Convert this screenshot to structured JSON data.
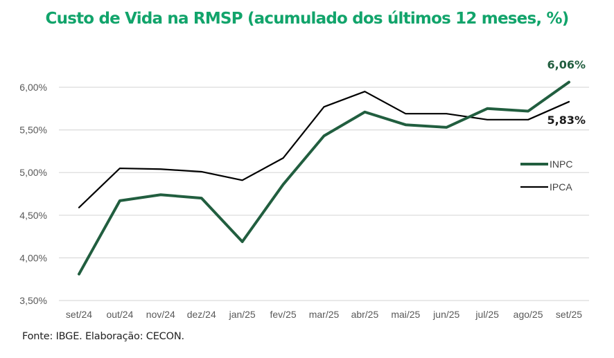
{
  "chart_data": {
    "type": "line",
    "title": "Custo de Vida na RMSP (acumulado dos últimos 12 meses, %)",
    "source_note": "Fonte: IBGE. Elaboração: CECON.",
    "xlabel": "",
    "ylabel": "",
    "categories": [
      "set/24",
      "out/24",
      "nov/24",
      "dez/24",
      "jan/25",
      "fev/25",
      "mar/25",
      "abr/25",
      "mai/25",
      "jun/25",
      "jul/25",
      "ago/25",
      "set/25"
    ],
    "ylim": [
      3.5,
      6.0
    ],
    "yticks": [
      {
        "value": 6.0,
        "label": "6,00%"
      },
      {
        "value": 5.5,
        "label": "5,50%"
      },
      {
        "value": 5.0,
        "label": "5,00%"
      },
      {
        "value": 4.5,
        "label": "4,50%"
      },
      {
        "value": 4.0,
        "label": "4,00%"
      },
      {
        "value": 3.5,
        "label": "3,50%"
      }
    ],
    "grid": true,
    "legend_position": "right",
    "series": [
      {
        "name": "INPC",
        "color": "#215e3f",
        "values": [
          3.81,
          4.67,
          4.74,
          4.7,
          4.19,
          4.86,
          5.43,
          5.71,
          5.56,
          5.53,
          5.75,
          5.72,
          6.06
        ],
        "end_label": "6,06%"
      },
      {
        "name": "IPCA",
        "color": "#000000",
        "values": [
          4.59,
          5.05,
          5.04,
          5.01,
          4.91,
          5.17,
          5.77,
          5.95,
          5.69,
          5.69,
          5.62,
          5.62,
          5.83
        ],
        "end_label": "5,83%"
      }
    ]
  },
  "colors": {
    "title": "#12a46b",
    "grid": "#d9d9d9",
    "axis_text": "#595959"
  }
}
